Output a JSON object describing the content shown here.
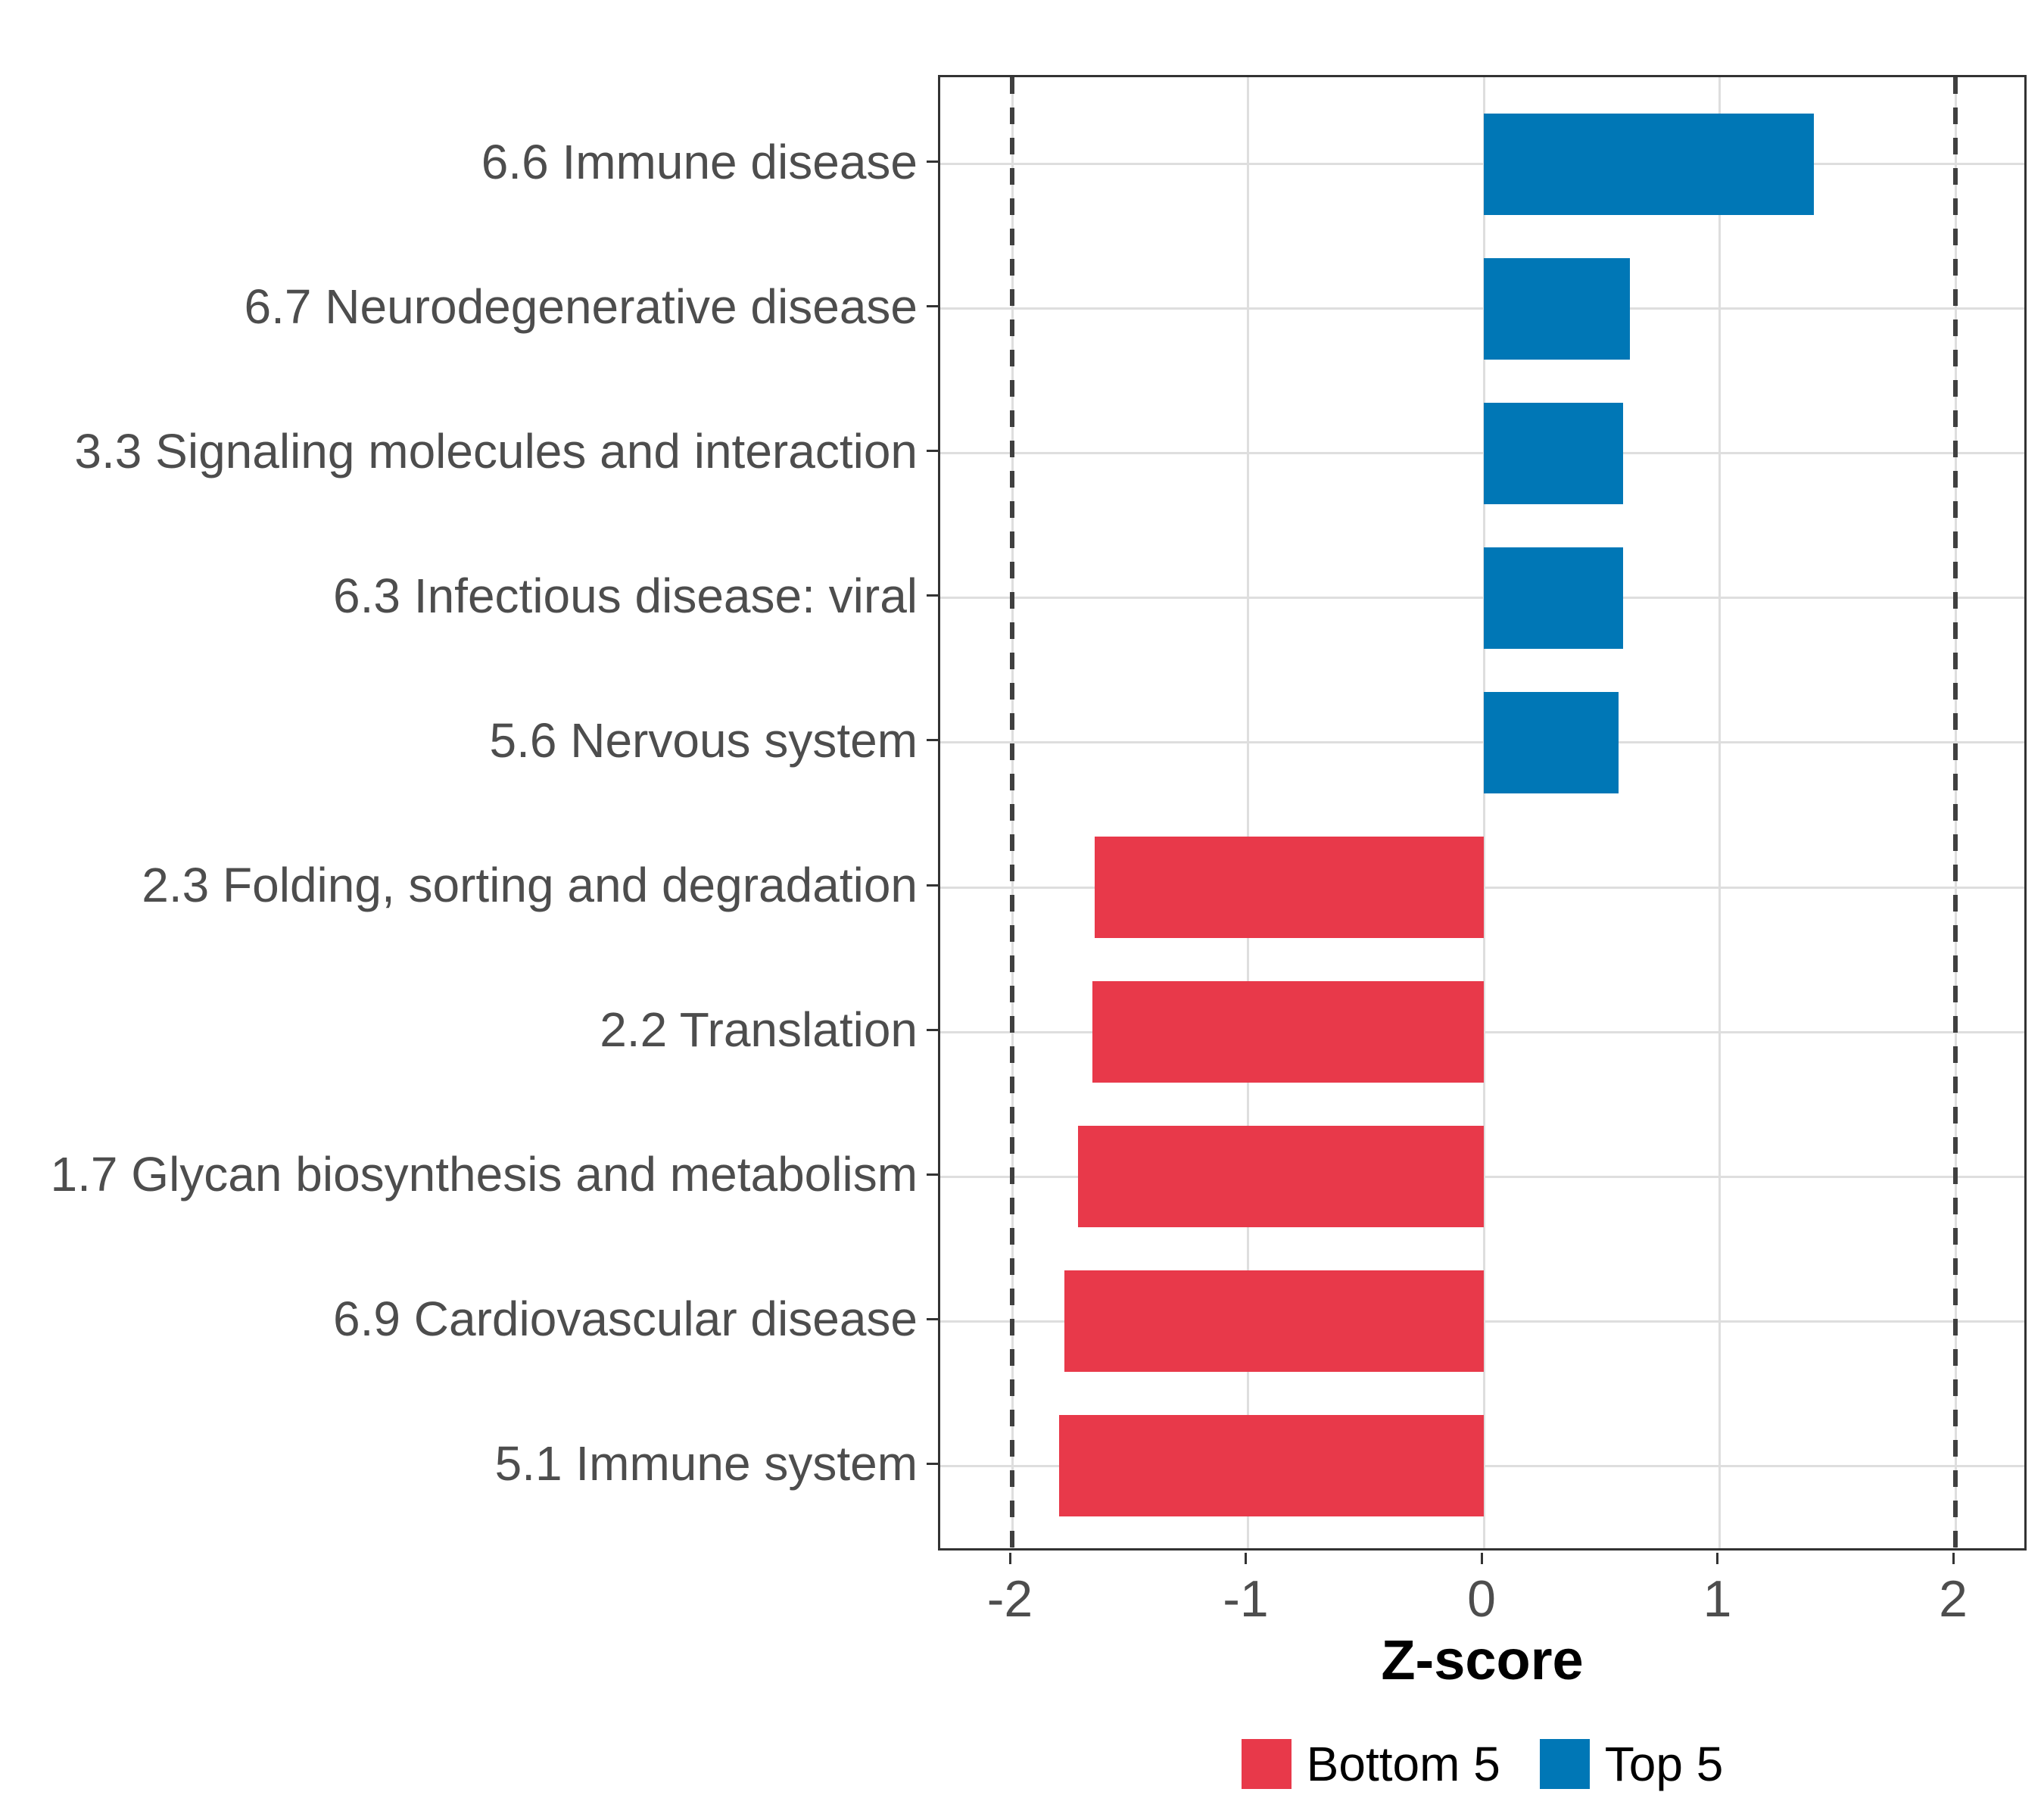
{
  "chart_data": {
    "type": "bar",
    "orientation": "horizontal",
    "title": "",
    "xlabel": "Z-score",
    "ylabel": "",
    "xlim": [
      -2.3,
      2.3
    ],
    "x_ticks": [
      -2,
      -1,
      0,
      1,
      2
    ],
    "x_tick_labels": [
      "-2",
      "-1",
      "0",
      "1",
      "2"
    ],
    "grid": true,
    "reference_lines": {
      "values": [
        -2,
        2
      ],
      "style": "dashed",
      "color": "#404040"
    },
    "categories": [
      "6.6 Immune disease",
      "6.7 Neurodegenerative disease",
      "3.3 Signaling molecules and interaction",
      "6.3 Infectious disease: viral",
      "5.6 Nervous system",
      "2.3 Folding, sorting and degradation",
      "2.2 Translation",
      "1.7 Glycan biosynthesis and metabolism",
      "6.9 Cardiovascular disease",
      "5.1 Immune system"
    ],
    "values": [
      1.4,
      0.62,
      0.59,
      0.59,
      0.57,
      -1.65,
      -1.66,
      -1.72,
      -1.78,
      -1.8
    ],
    "groups": [
      "Top 5",
      "Top 5",
      "Top 5",
      "Top 5",
      "Top 5",
      "Bottom 5",
      "Bottom 5",
      "Bottom 5",
      "Bottom 5",
      "Bottom 5"
    ],
    "colors": {
      "Top 5": "#0077B6",
      "Bottom 5": "#E8394A"
    },
    "legend": {
      "position": "bottom",
      "entries": [
        {
          "label": "Bottom 5",
          "color": "#E8394A"
        },
        {
          "label": "Top 5",
          "color": "#0077B6"
        }
      ]
    }
  }
}
